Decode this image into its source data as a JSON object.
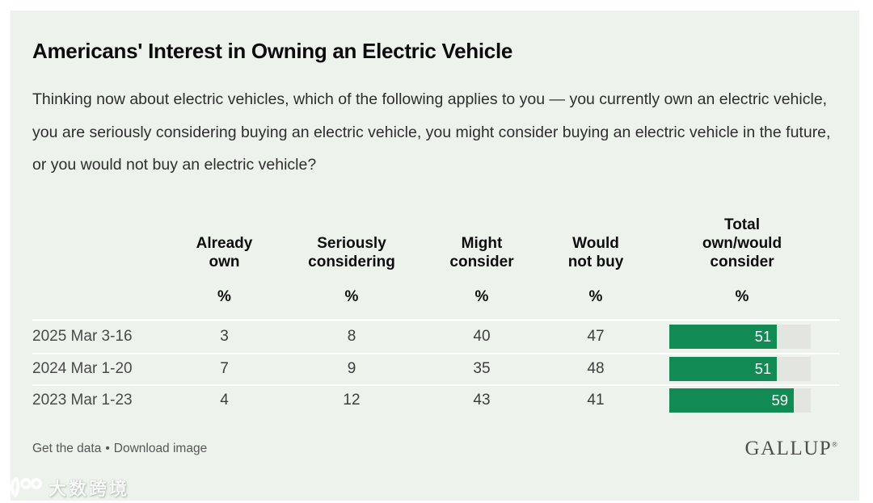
{
  "title": "Americans' Interest in Owning an Electric Vehicle",
  "subtitle": "Thinking now about electric vehicles, which of the following applies to you — you currently own an electric vehicle, you are seriously considering buying an electric vehicle, you might consider buying an electric vehicle in the future, or you would not buy an electric vehicle?",
  "table": {
    "columns": [
      "Already\nown",
      "Seriously\nconsidering",
      "Might\nconsider",
      "Would\nnot buy",
      "Total\nown/would\nconsider"
    ],
    "unit": "%",
    "bar_axis_max": 67,
    "rows": [
      {
        "label": "2025 Mar 3-16",
        "values": [
          3,
          8,
          40,
          47
        ],
        "total": 51
      },
      {
        "label": "2024 Mar 1-20",
        "values": [
          7,
          9,
          35,
          48
        ],
        "total": 51
      },
      {
        "label": "2023 Mar 1-23",
        "values": [
          4,
          12,
          43,
          41
        ],
        "total": 59
      }
    ]
  },
  "chart_data": {
    "type": "table",
    "title": "Americans' Interest in Owning an Electric Vehicle",
    "subtitle": "Thinking now about electric vehicles, which of the following applies to you — you currently own an electric vehicle, you are seriously considering buying an electric vehicle, you might consider buying an electric vehicle in the future, or you would not buy an electric vehicle?",
    "unit": "%",
    "categories": [
      "2025 Mar 3-16",
      "2024 Mar 1-20",
      "2023 Mar 1-23"
    ],
    "series": [
      {
        "name": "Already own",
        "values": [
          3,
          7,
          4
        ]
      },
      {
        "name": "Seriously considering",
        "values": [
          8,
          9,
          12
        ]
      },
      {
        "name": "Might consider",
        "values": [
          40,
          35,
          43
        ]
      },
      {
        "name": "Would not buy",
        "values": [
          47,
          48,
          41
        ]
      },
      {
        "name": "Total own/would consider",
        "values": [
          51,
          51,
          59
        ],
        "render": "bar",
        "bar_color": "#118a54",
        "bar_track_color": "#e2e5e0",
        "bar_axis_max": 67
      }
    ],
    "legend_position": "none",
    "grid": false
  },
  "footer": {
    "get_data_label": "Get the data",
    "separator": "•",
    "download_label": "Download image",
    "brand": "GALLUP",
    "brand_mark": "®"
  },
  "watermark": {
    "text": "大数跨境"
  },
  "colors": {
    "panel_bg": "#edf3ec",
    "bar_green": "#118a54",
    "bar_track": "#e2e5e0",
    "separator_white": "#ffffff"
  }
}
